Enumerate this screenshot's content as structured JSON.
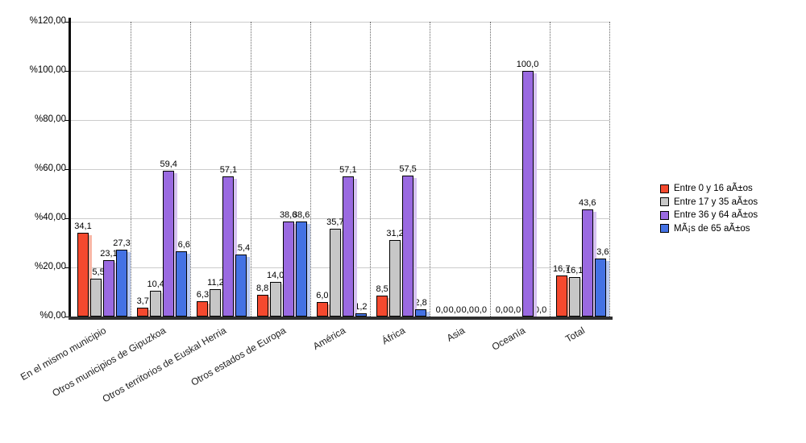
{
  "chart_data": {
    "type": "bar",
    "title": "",
    "categories": [
      "En el mismo municipio",
      "Otros municipios de Gipuzkoa",
      "Otros territorios de Euskal Herria",
      "Otros estados de Europa",
      "América",
      "África",
      "Asia",
      "Oceanía",
      "Total"
    ],
    "series": [
      {
        "name": "Entre 0 y 16 aÃ±os",
        "color": "#f5492e",
        "shadow_color": "#f9b7a6",
        "values": [
          34.1,
          3.7,
          6.3,
          8.8,
          6.0,
          8.5,
          0.0,
          0.0,
          16.7
        ]
      },
      {
        "name": "Entre 17 y 35 aÃ±os",
        "color": "#c7c7c7",
        "shadow_color": "#e5e5e5",
        "values": [
          15.5,
          10.4,
          11.2,
          14.0,
          35.7,
          31.2,
          0.0,
          0.0,
          16.1
        ]
      },
      {
        "name": "Entre 36 y 64 aÃ±os",
        "color": "#9a6ae1",
        "shadow_color": "#d7c3f2",
        "values": [
          23.1,
          59.4,
          57.1,
          38.6,
          57.1,
          57.5,
          0.0,
          100.0,
          43.6
        ]
      },
      {
        "name": "MÃ¡s de 65 aÃ±os",
        "color": "#4472e4",
        "shadow_color": "#bacbf4",
        "values": [
          27.3,
          26.6,
          25.4,
          38.6,
          1.2,
          2.8,
          0.0,
          0.0,
          23.6
        ]
      }
    ],
    "y_axis": {
      "min": 0,
      "max": 120,
      "step": 20,
      "tick_labels": [
        "%0,00",
        "%20,00",
        "%40,00",
        "%60,00",
        "%80,00",
        "%100,00",
        "%120,00"
      ]
    },
    "grid": {
      "horizontal": true,
      "vertical_dotted": true
    },
    "legend_position": "right",
    "decimal_separator": ",",
    "value_label_decimals": 1
  }
}
